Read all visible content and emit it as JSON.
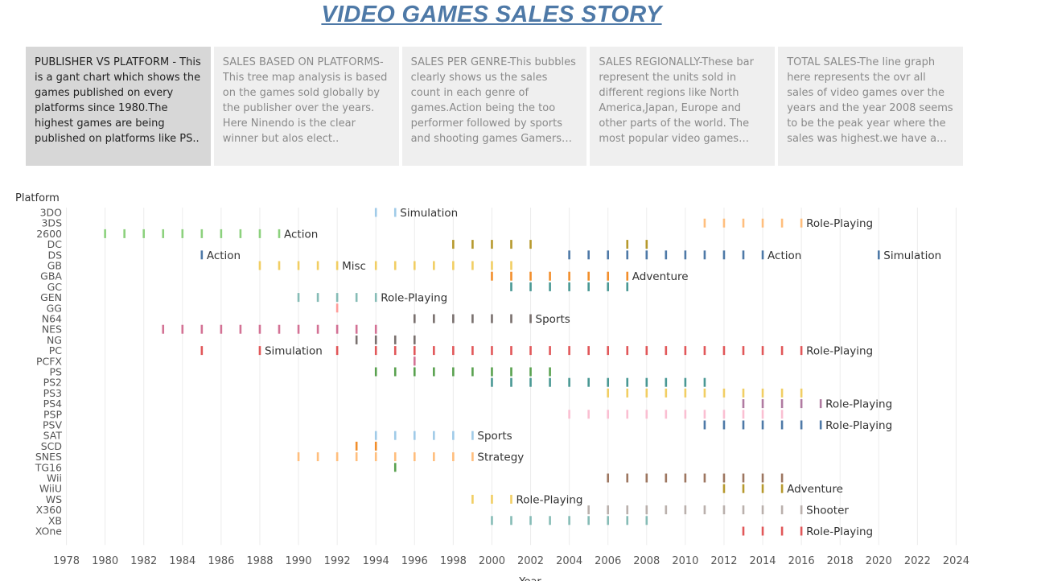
{
  "title": "VIDEO GAMES SALES STORY",
  "story_points": [
    {
      "text": "PUBLISHER VS PLATFORM - This is a gant chart which shows the games published on every platforms since 1980.The highest games are being published on platforms like PS..",
      "active": true
    },
    {
      "text": "SALES BASED ON PLATFORMS-This tree map analysis is based on the games sold globally by the publisher over the years. Here Ninendo is the clear winner but alos elect..",
      "active": false
    },
    {
      "text": "SALES PER GENRE-This bubbles clearly shows us the sales count in each genre of games.Action being the too performer followed by sports and shooting games Gamers are not very fo..",
      "active": false
    },
    {
      "text": "SALES REGIONALLY-These bar represent the units sold in different regions like North America,Japan, Europe and other parts of the world. The most popular video games love..",
      "active": false
    },
    {
      "text": "TOTAL SALES-The line graph here represents the ovr all sales of video games over the years and the year 2008 seems to be the peak year where the sales was highest.we have  a averag..",
      "active": false
    }
  ],
  "chart_data": {
    "type": "gantt",
    "ylabel": "Platform",
    "xlabel": "Year",
    "xlim": [
      1977,
      2025
    ],
    "xticks": [
      1978,
      1980,
      1982,
      1984,
      1986,
      1988,
      1990,
      1992,
      1994,
      1996,
      1998,
      2000,
      2002,
      2004,
      2006,
      2008,
      2010,
      2012,
      2014,
      2016,
      2018,
      2020,
      2022,
      2024
    ],
    "grid": true,
    "platforms": [
      {
        "name": "3DO",
        "color": "#a0cbe8",
        "years": [
          1994,
          1995
        ],
        "label": "Simulation",
        "label_year": 1995
      },
      {
        "name": "3DS",
        "color": "#ffbe7d",
        "years": [
          2011,
          2012,
          2013,
          2014,
          2015,
          2016
        ],
        "label": "Role-Playing",
        "label_year": 2016
      },
      {
        "name": "2600",
        "color": "#8cd17d",
        "years": [
          1980,
          1981,
          1982,
          1983,
          1984,
          1985,
          1986,
          1987,
          1988,
          1989
        ],
        "label": "Action",
        "label_year": 1989
      },
      {
        "name": "DC",
        "color": "#b6992d",
        "years": [
          1998,
          1999,
          2000,
          2001,
          2002,
          2007,
          2008
        ],
        "label": "",
        "label_year": null
      },
      {
        "name": "DS",
        "color": "#4e79a7",
        "years": [
          1985,
          2004,
          2005,
          2006,
          2007,
          2008,
          2009,
          2010,
          2011,
          2012,
          2013,
          2014,
          2020
        ],
        "labels": [
          {
            "text": "Action",
            "year": 1985
          },
          {
            "text": "Action",
            "year": 2014
          },
          {
            "text": "Simulation",
            "year": 2020
          }
        ]
      },
      {
        "name": "GB",
        "color": "#f1ce63",
        "years": [
          1988,
          1989,
          1990,
          1991,
          1992,
          1994,
          1995,
          1996,
          1997,
          1998,
          1999,
          2000,
          2001
        ],
        "label": "Misc",
        "label_year": 1992
      },
      {
        "name": "GBA",
        "color": "#f28e2b",
        "years": [
          2000,
          2001,
          2002,
          2003,
          2004,
          2005,
          2006,
          2007
        ],
        "label": "Adventure",
        "label_year": 2007
      },
      {
        "name": "GC",
        "color": "#499894",
        "years": [
          2001,
          2002,
          2003,
          2004,
          2005,
          2006,
          2007
        ],
        "label": "",
        "label_year": null
      },
      {
        "name": "GEN",
        "color": "#86bcb6",
        "years": [
          1990,
          1991,
          1992,
          1993,
          1994
        ],
        "label": "Role-Playing",
        "label_year": 1994
      },
      {
        "name": "GG",
        "color": "#ff9d9a",
        "years": [
          1992
        ],
        "label": "",
        "label_year": null
      },
      {
        "name": "N64",
        "color": "#79706e",
        "years": [
          1996,
          1997,
          1998,
          1999,
          2000,
          2001,
          2002
        ],
        "label": "Sports",
        "label_year": 2002
      },
      {
        "name": "NES",
        "color": "#d37295",
        "years": [
          1983,
          1984,
          1985,
          1986,
          1987,
          1988,
          1989,
          1990,
          1991,
          1992,
          1993,
          1994
        ],
        "label": "",
        "label_year": null
      },
      {
        "name": "NG",
        "color": "#79706e",
        "years": [
          1993,
          1994,
          1995,
          1996
        ],
        "label": "",
        "label_year": null
      },
      {
        "name": "PC",
        "color": "#e15759",
        "years": [
          1985,
          1988,
          1992,
          1994,
          1995,
          1996,
          1997,
          1998,
          1999,
          2000,
          2001,
          2002,
          2003,
          2004,
          2005,
          2006,
          2007,
          2008,
          2009,
          2010,
          2011,
          2012,
          2013,
          2014,
          2015,
          2016
        ],
        "labels": [
          {
            "text": "Simulation",
            "year": 1988
          },
          {
            "text": "Role-Playing",
            "year": 2016
          }
        ]
      },
      {
        "name": "PCFX",
        "color": "#d37295",
        "years": [
          1996
        ],
        "label": "",
        "label_year": null
      },
      {
        "name": "PS",
        "color": "#59a14f",
        "years": [
          1994,
          1995,
          1996,
          1997,
          1998,
          1999,
          2000,
          2001,
          2002,
          2003
        ],
        "label": "",
        "label_year": null
      },
      {
        "name": "PS2",
        "color": "#499894",
        "years": [
          2000,
          2001,
          2002,
          2003,
          2004,
          2005,
          2006,
          2007,
          2008,
          2009,
          2010,
          2011
        ],
        "label": "",
        "label_year": null
      },
      {
        "name": "PS3",
        "color": "#f1ce63",
        "years": [
          2006,
          2007,
          2008,
          2009,
          2010,
          2011,
          2012,
          2013,
          2014,
          2015,
          2016
        ],
        "label": "",
        "label_year": null
      },
      {
        "name": "PS4",
        "color": "#b07aa1",
        "years": [
          2013,
          2014,
          2015,
          2016,
          2017
        ],
        "label": "Role-Playing",
        "label_year": 2017
      },
      {
        "name": "PSP",
        "color": "#fabfd2",
        "years": [
          2004,
          2005,
          2006,
          2007,
          2008,
          2009,
          2010,
          2011,
          2012,
          2013,
          2014,
          2015
        ],
        "label": "",
        "label_year": null
      },
      {
        "name": "PSV",
        "color": "#4e79a7",
        "years": [
          2011,
          2012,
          2013,
          2014,
          2015,
          2016,
          2017
        ],
        "label": "Role-Playing",
        "label_year": 2017
      },
      {
        "name": "SAT",
        "color": "#a0cbe8",
        "years": [
          1994,
          1995,
          1996,
          1997,
          1998,
          1999
        ],
        "label": "Sports",
        "label_year": 1999
      },
      {
        "name": "SCD",
        "color": "#f28e2b",
        "years": [
          1993,
          1994
        ],
        "label": "",
        "label_year": null
      },
      {
        "name": "SNES",
        "color": "#ffbe7d",
        "years": [
          1990,
          1991,
          1992,
          1993,
          1994,
          1995,
          1996,
          1997,
          1998,
          1999
        ],
        "label": "Strategy",
        "label_year": 1999
      },
      {
        "name": "TG16",
        "color": "#59a14f",
        "years": [
          1995
        ],
        "label": "",
        "label_year": null
      },
      {
        "name": "Wii",
        "color": "#9d7660",
        "years": [
          2006,
          2007,
          2008,
          2009,
          2010,
          2011,
          2012,
          2013,
          2014,
          2015
        ],
        "label": "",
        "label_year": null
      },
      {
        "name": "WiiU",
        "color": "#b6992d",
        "years": [
          2012,
          2013,
          2014,
          2015
        ],
        "label": "Adventure",
        "label_year": 2015
      },
      {
        "name": "WS",
        "color": "#f1ce63",
        "years": [
          1999,
          2000,
          2001
        ],
        "label": "Role-Playing",
        "label_year": 2001
      },
      {
        "name": "X360",
        "color": "#bab0ac",
        "years": [
          2005,
          2006,
          2007,
          2008,
          2009,
          2010,
          2011,
          2012,
          2013,
          2014,
          2015,
          2016
        ],
        "label": "Shooter",
        "label_year": 2016
      },
      {
        "name": "XB",
        "color": "#86bcb6",
        "years": [
          2000,
          2001,
          2002,
          2003,
          2004,
          2005,
          2006,
          2007,
          2008
        ],
        "label": "",
        "label_year": null
      },
      {
        "name": "XOne",
        "color": "#e15759",
        "years": [
          2013,
          2014,
          2015,
          2016
        ],
        "label": "Role-Playing",
        "label_year": 2016
      }
    ]
  }
}
